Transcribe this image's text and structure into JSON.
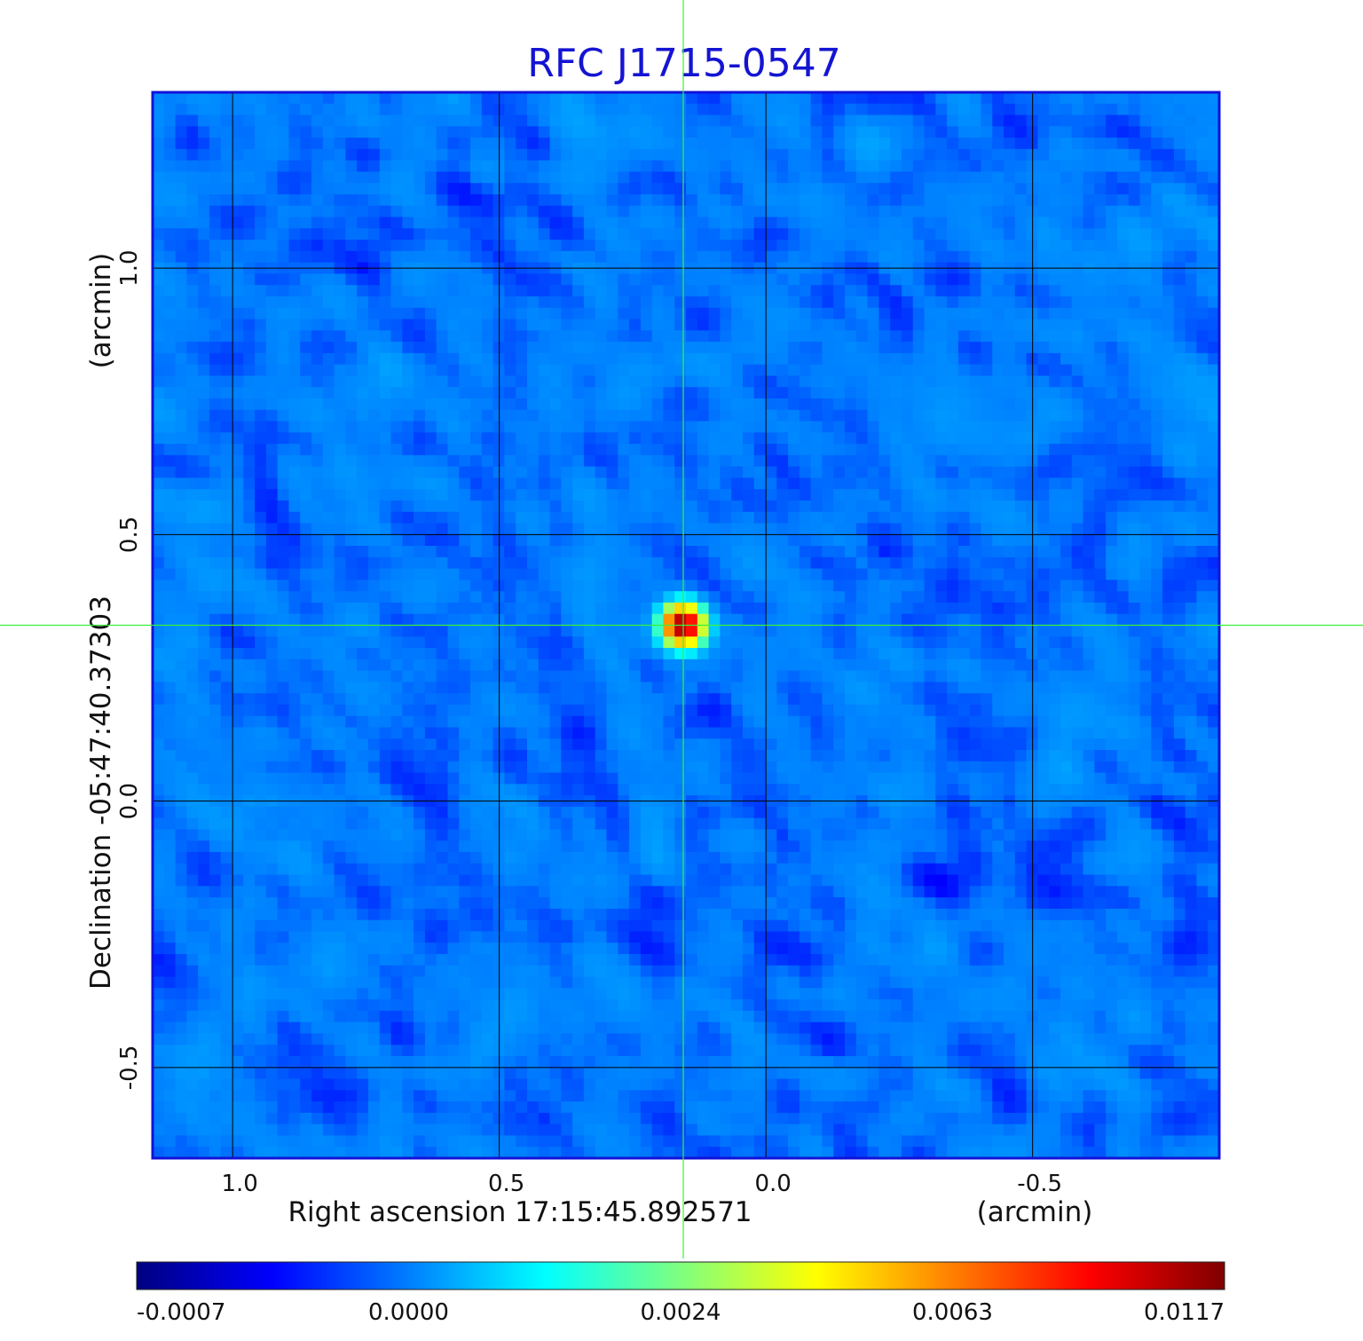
{
  "title": "RFC J1715-0547",
  "colors": {
    "title": "#1414d2",
    "frame": "#1212d8",
    "grid": "#000000",
    "crosshair": "#3cf03c"
  },
  "colormap": {
    "name": "jet",
    "stops": [
      "#00007f",
      "#0000ff",
      "#007fff",
      "#00ffff",
      "#7fff7f",
      "#ffff00",
      "#ff7f00",
      "#ff0000",
      "#7f0000"
    ]
  },
  "x_axis": {
    "label": "Right ascension  17:15:45.892571",
    "unit": "(arcmin)",
    "ticks": [
      {
        "value": 1.0,
        "label": "1.0"
      },
      {
        "value": 0.5,
        "label": "0.5"
      },
      {
        "value": 0.0,
        "label": "0.0"
      },
      {
        "value": -0.5,
        "label": "-0.5"
      }
    ],
    "range": [
      1.15,
      -0.85
    ]
  },
  "y_axis": {
    "label": "Declination  -05:47:40.37303",
    "unit": "(arcmin)",
    "ticks": [
      {
        "value": 1.0,
        "label": "1.0"
      },
      {
        "value": 0.5,
        "label": "0.5"
      },
      {
        "value": 0.0,
        "label": "0.0"
      },
      {
        "value": -0.5,
        "label": "-0.5"
      }
    ],
    "range": [
      -0.67,
      1.33
    ]
  },
  "colorbar": {
    "labels": [
      "-0.0007",
      "0.0000",
      "0.0024",
      "0.0063",
      "0.0117"
    ]
  },
  "chart_data": {
    "type": "heatmap",
    "title": "RFC J1715-0547",
    "xlabel": "Right ascension  17:15:45.892571",
    "ylabel": "Declination  -05:47:40.37303",
    "x_unit": "(arcmin)",
    "y_unit": "(arcmin)",
    "xlim": [
      1.15,
      -0.85
    ],
    "ylim": [
      -0.67,
      1.33
    ],
    "grid": true,
    "colorbar_ticks": [
      -0.0007,
      0.0,
      0.0024,
      0.0063,
      0.0117
    ],
    "value_range": [
      -0.0007,
      0.0117
    ],
    "background_level": 0.0,
    "noise_amplitude": 0.00035,
    "source": {
      "x": 0.155,
      "y": 0.33,
      "peak": 0.0117,
      "fwhm": 0.06
    },
    "crosshair": {
      "x": 0.155,
      "y": 0.33
    }
  }
}
